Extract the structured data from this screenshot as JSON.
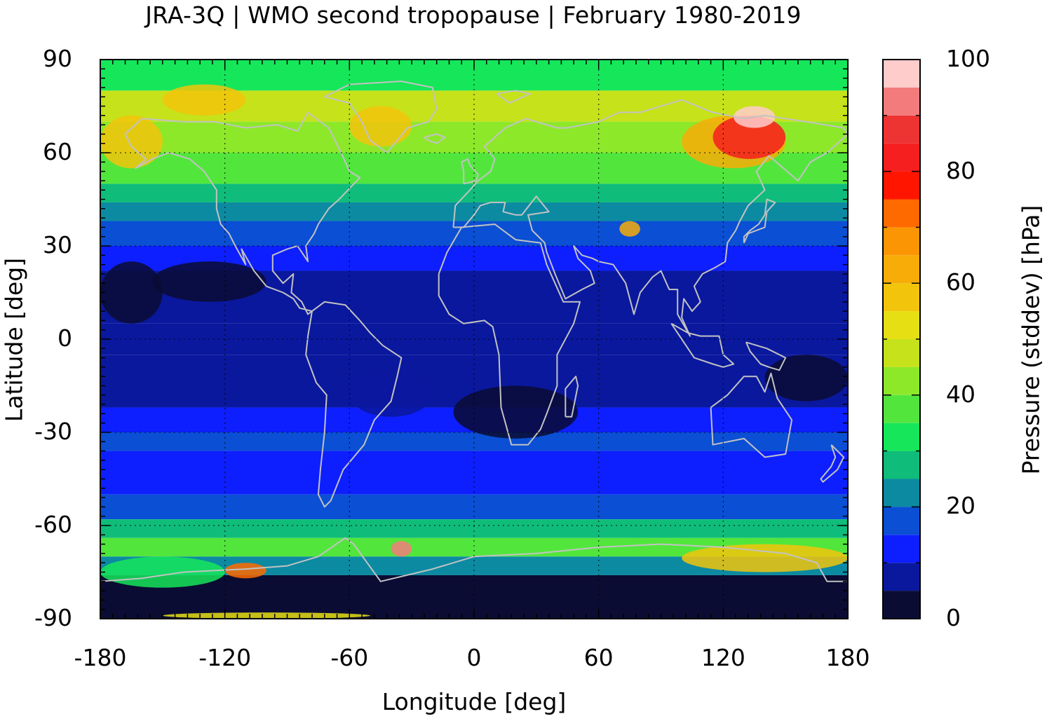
{
  "chart_data": {
    "type": "heatmap",
    "title": "JRA-3Q | WMO second tropopause | February 1980-2019",
    "xlabel": "Longitude [deg]",
    "ylabel": "Latitude [deg]",
    "colorbar_label": "Pressure (stddev) [hPa]",
    "xlim": [
      -180,
      180
    ],
    "ylim": [
      -90,
      90
    ],
    "x_ticks": [
      "-180",
      "-120",
      "-60",
      "0",
      "60",
      "120",
      "180"
    ],
    "y_ticks": [
      "90",
      "60",
      "30",
      "0",
      "-30",
      "-60",
      "-90"
    ],
    "colorbar_ticks": [
      "100",
      "80",
      "60",
      "40",
      "20",
      "0"
    ],
    "colorbar_range": [
      0,
      100
    ],
    "colorbar_levels": [
      {
        "from": 0,
        "to": 5,
        "color": "#0b0c33"
      },
      {
        "from": 5,
        "to": 10,
        "color": "#0a189e"
      },
      {
        "from": 10,
        "to": 15,
        "color": "#0d1fff"
      },
      {
        "from": 15,
        "to": 20,
        "color": "#0a4fd4"
      },
      {
        "from": 20,
        "to": 25,
        "color": "#0c8aa2"
      },
      {
        "from": 25,
        "to": 30,
        "color": "#0fbc7a"
      },
      {
        "from": 30,
        "to": 35,
        "color": "#16e65a"
      },
      {
        "from": 35,
        "to": 40,
        "color": "#52e63d"
      },
      {
        "from": 40,
        "to": 45,
        "color": "#8ee82a"
      },
      {
        "from": 45,
        "to": 50,
        "color": "#c6e21a"
      },
      {
        "from": 50,
        "to": 55,
        "color": "#e6df14"
      },
      {
        "from": 55,
        "to": 60,
        "color": "#f2c40c"
      },
      {
        "from": 60,
        "to": 65,
        "color": "#f8ac08"
      },
      {
        "from": 65,
        "to": 70,
        "color": "#fb9504"
      },
      {
        "from": 70,
        "to": 75,
        "color": "#ff6a00"
      },
      {
        "from": 75,
        "to": 80,
        "color": "#ff1500"
      },
      {
        "from": 80,
        "to": 85,
        "color": "#f51f1f"
      },
      {
        "from": 85,
        "to": 90,
        "color": "#ee3333"
      },
      {
        "from": 90,
        "to": 95,
        "color": "#f37b7b"
      },
      {
        "from": 95,
        "to": 100,
        "color": "#ffcccc"
      }
    ],
    "zonal_bands": [
      {
        "lat_from": 90,
        "lat_to": 80,
        "value": 33
      },
      {
        "lat_from": 80,
        "lat_to": 70,
        "value": 45
      },
      {
        "lat_from": 70,
        "lat_to": 60,
        "value": 42
      },
      {
        "lat_from": 60,
        "lat_to": 50,
        "value": 37
      },
      {
        "lat_from": 50,
        "lat_to": 44,
        "value": 29
      },
      {
        "lat_from": 44,
        "lat_to": 38,
        "value": 21
      },
      {
        "lat_from": 38,
        "lat_to": 30,
        "value": 16
      },
      {
        "lat_from": 30,
        "lat_to": 22,
        "value": 12
      },
      {
        "lat_from": 22,
        "lat_to": 5,
        "value": 9
      },
      {
        "lat_from": 5,
        "lat_to": -5,
        "value": 7
      },
      {
        "lat_from": -5,
        "lat_to": -22,
        "value": 7
      },
      {
        "lat_from": -22,
        "lat_to": -30,
        "value": 11
      },
      {
        "lat_from": -30,
        "lat_to": -36,
        "value": 18
      },
      {
        "lat_from": -36,
        "lat_to": -50,
        "value": 13
      },
      {
        "lat_from": -50,
        "lat_to": -58,
        "value": 19
      },
      {
        "lat_from": -58,
        "lat_to": -64,
        "value": 27
      },
      {
        "lat_from": -64,
        "lat_to": -70,
        "value": 37
      },
      {
        "lat_from": -70,
        "lat_to": -76,
        "value": 22
      },
      {
        "lat_from": -76,
        "lat_to": -90,
        "value": 3
      }
    ],
    "regional_features": [
      {
        "lon": [
          -180,
          -150
        ],
        "lat": [
          55,
          72
        ],
        "value": 58
      },
      {
        "lon": [
          -150,
          -110
        ],
        "lat": [
          72,
          82
        ],
        "value": 57
      },
      {
        "lon": [
          -60,
          -30
        ],
        "lat": [
          62,
          75
        ],
        "value": 56
      },
      {
        "lon": [
          100,
          150
        ],
        "lat": [
          55,
          72
        ],
        "value": 62
      },
      {
        "lon": [
          115,
          150
        ],
        "lat": [
          58,
          72
        ],
        "value": 82
      },
      {
        "lon": [
          125,
          145
        ],
        "lat": [
          68,
          75
        ],
        "value": 97
      },
      {
        "lon": [
          70,
          80
        ],
        "lat": [
          33,
          38
        ],
        "value": 60
      },
      {
        "lon": [
          -40,
          -30
        ],
        "lat": [
          -70,
          -65
        ],
        "value": 92
      },
      {
        "lon": [
          100,
          180
        ],
        "lat": [
          -75,
          -66
        ],
        "value": 58
      },
      {
        "lon": [
          -120,
          -100
        ],
        "lat": [
          -77,
          -72
        ],
        "value": 72
      },
      {
        "lon": [
          -180,
          -120
        ],
        "lat": [
          -80,
          -70
        ],
        "value": 30
      },
      {
        "lon": [
          -150,
          -50
        ],
        "lat": [
          -90,
          -88
        ],
        "value": 50
      },
      {
        "lon": [
          -10,
          50
        ],
        "lat": [
          -32,
          -15
        ],
        "value": 3
      },
      {
        "lon": [
          -155,
          -100
        ],
        "lat": [
          12,
          25
        ],
        "value": 3
      },
      {
        "lon": [
          -180,
          -150
        ],
        "lat": [
          5,
          25
        ],
        "value": 4
      },
      {
        "lon": [
          140,
          180
        ],
        "lat": [
          -20,
          -5
        ],
        "value": 4
      },
      {
        "lon": [
          -60,
          -20
        ],
        "lat": [
          -25,
          -10
        ],
        "value": 5
      }
    ],
    "grid": true,
    "gridlines": {
      "lon": [
        -120,
        -60,
        0,
        60,
        120
      ],
      "lat": [
        -60,
        -30,
        0,
        30,
        60
      ]
    },
    "coastline_color": "#c2c2c2",
    "colorbar_position": "right"
  }
}
